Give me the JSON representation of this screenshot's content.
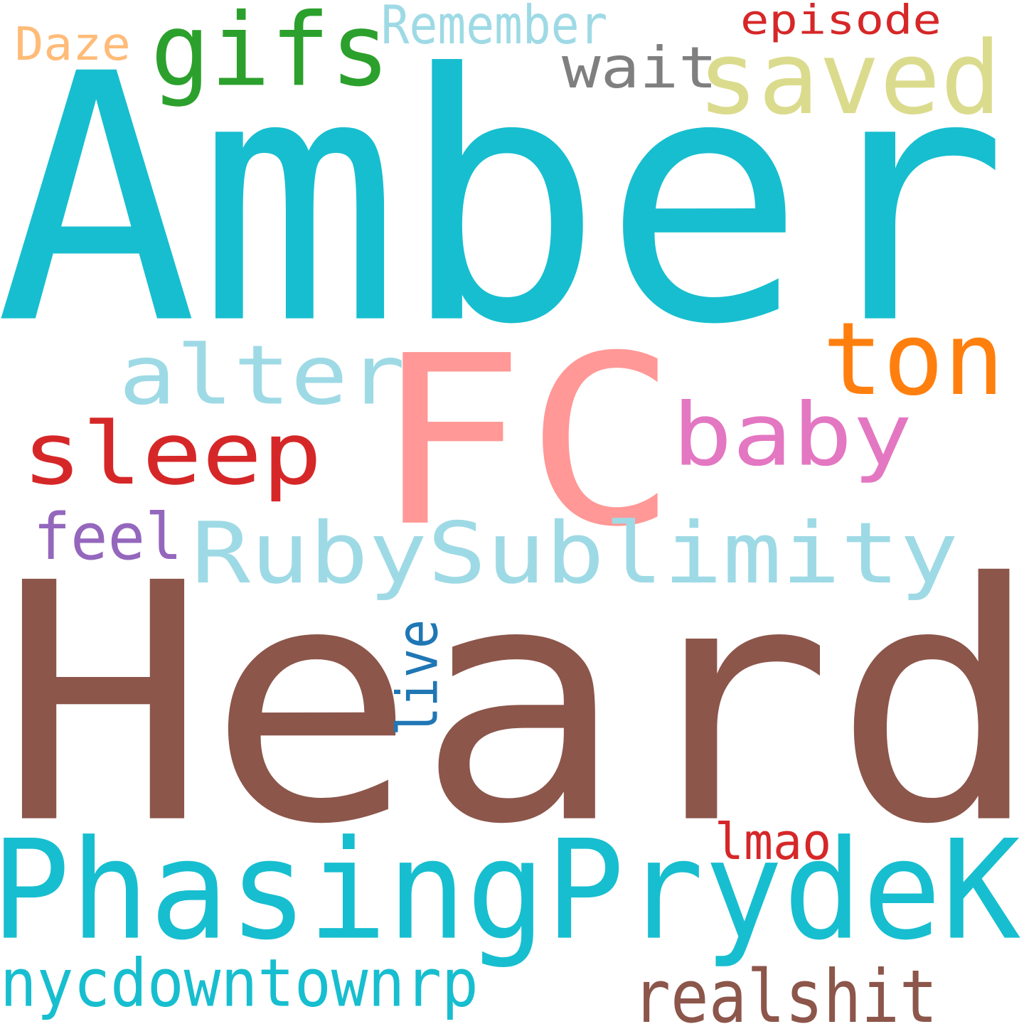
{
  "wordcloud": {
    "words": [
      {
        "text": "Amber",
        "color": "#17becf"
      },
      {
        "text": "Heard",
        "color": "#8c564b"
      },
      {
        "text": "FC",
        "color": "#ff9896"
      },
      {
        "text": "PhasingPrydeK",
        "color": "#17becf"
      },
      {
        "text": "RubySublimity",
        "color": "#9edae5"
      },
      {
        "text": "saved",
        "color": "#dbdb8d"
      },
      {
        "text": "gifs",
        "color": "#2ca02c"
      },
      {
        "text": "alter",
        "color": "#9edae5"
      },
      {
        "text": "ton",
        "color": "#ff7f0e"
      },
      {
        "text": "sleep",
        "color": "#d62728"
      },
      {
        "text": "baby",
        "color": "#e377c2"
      },
      {
        "text": "wait",
        "color": "#7f7f7f"
      },
      {
        "text": "Remember",
        "color": "#9edae5"
      },
      {
        "text": "episode",
        "color": "#d62728"
      },
      {
        "text": "Daze",
        "color": "#ffbb78"
      },
      {
        "text": "feel",
        "color": "#9467bd"
      },
      {
        "text": "live",
        "color": "#1f77b4"
      },
      {
        "text": "lmao",
        "color": "#d62728"
      },
      {
        "text": "nycdowntownrp",
        "color": "#17becf"
      },
      {
        "text": "realshit",
        "color": "#8c564b"
      }
    ]
  }
}
